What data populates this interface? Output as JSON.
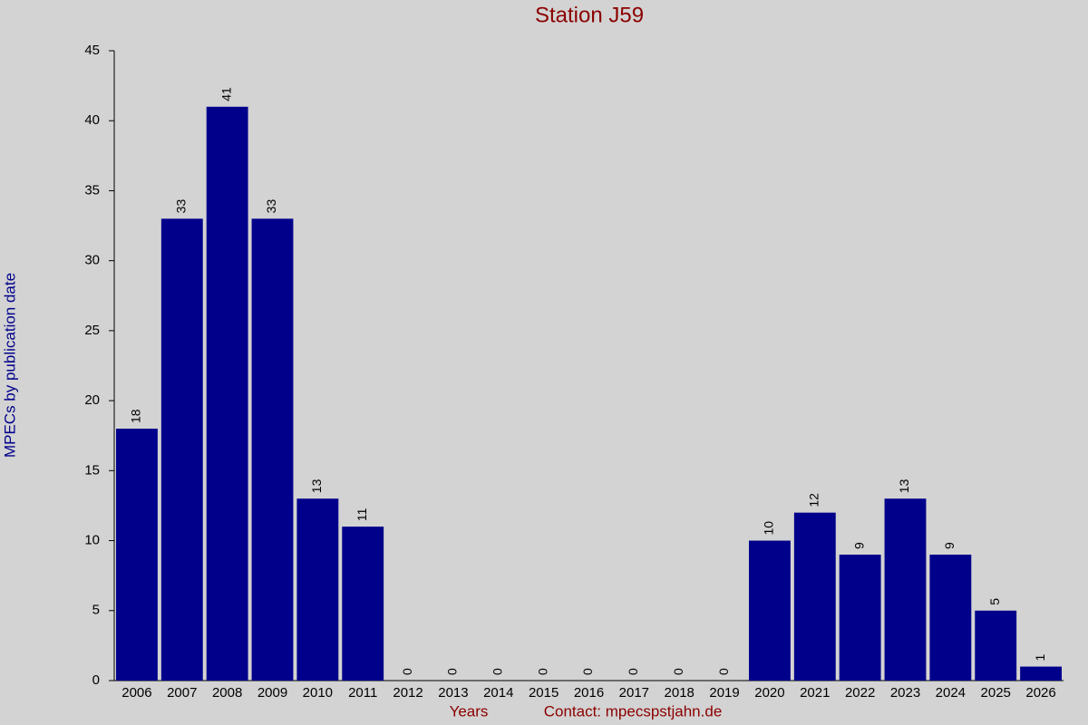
{
  "chart_data": {
    "type": "bar",
    "title": "Station J59",
    "y_label": "MPECs by publication date",
    "x_label": "Years",
    "annotation": "Contact: mpecspstjahn.de",
    "categories": [
      "2006",
      "2007",
      "2008",
      "2009",
      "2010",
      "2011",
      "2012",
      "2013",
      "2014",
      "2015",
      "2016",
      "2017",
      "2018",
      "2019",
      "2020",
      "2021",
      "2022",
      "2023",
      "2024",
      "2025",
      "2026"
    ],
    "values": [
      18,
      33,
      41,
      33,
      13,
      11,
      0,
      0,
      0,
      0,
      0,
      0,
      0,
      0,
      10,
      12,
      9,
      13,
      9,
      5,
      1
    ],
    "color": "#00008b",
    "ylim": [
      0,
      45
    ],
    "yticks": [
      0,
      5,
      10,
      15,
      20,
      25,
      30,
      35,
      40,
      45
    ],
    "data_labels": true
  }
}
